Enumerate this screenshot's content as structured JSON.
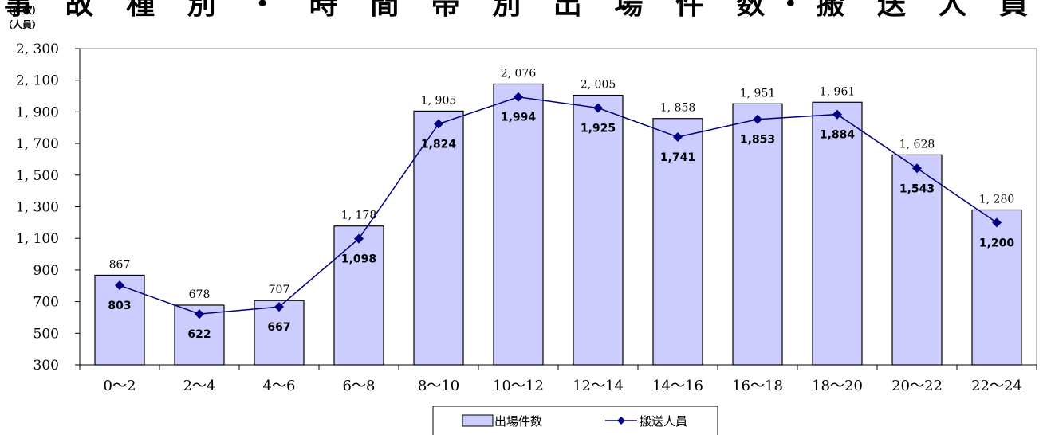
{
  "chart_data": {
    "type": "bar",
    "title": "事 故 種 別 ・ 時 間 帯 別 出 場 件 数・搬 送 人 員",
    "ylabel_units": [
      "（件数）",
      "（人員）"
    ],
    "categories": [
      "0～2",
      "2～4",
      "4～6",
      "6～8",
      "8～10",
      "10～12",
      "12～14",
      "14～16",
      "16～18",
      "18～20",
      "20～22",
      "22～24"
    ],
    "series": [
      {
        "name": "出場件数",
        "kind": "bar",
        "color": "#ccccff",
        "values": [
          867,
          678,
          707,
          1178,
          1905,
          2076,
          2005,
          1858,
          1951,
          1961,
          1628,
          1280
        ],
        "labels": [
          "867",
          "678",
          "707",
          "1, 178",
          "1, 905",
          "2, 076",
          "2, 005",
          "1, 858",
          "1, 951",
          "1, 961",
          "1, 628",
          "1, 280"
        ]
      },
      {
        "name": "搬送人員",
        "kind": "line",
        "color": "#000080",
        "values": [
          803,
          622,
          667,
          1098,
          1824,
          1994,
          1925,
          1741,
          1853,
          1884,
          1543,
          1200
        ],
        "labels": [
          "803",
          "622",
          "667",
          "1,098",
          "1,824",
          "1,994",
          "1,925",
          "1,741",
          "1,853",
          "1,884",
          "1,543",
          "1,200"
        ]
      }
    ],
    "ylim": [
      300,
      2300
    ],
    "yticks": [
      300,
      500,
      700,
      900,
      1100,
      1300,
      1500,
      1700,
      1900,
      2100,
      2300
    ],
    "ytick_labels": [
      "300",
      "500",
      "700",
      "900",
      "1, 100",
      "1, 300",
      "1, 500",
      "1, 700",
      "1, 900",
      "2, 100",
      "2, 300"
    ],
    "legend": {
      "placement": "bottom-center",
      "items": [
        "出場件数",
        "搬送人員"
      ]
    }
  }
}
